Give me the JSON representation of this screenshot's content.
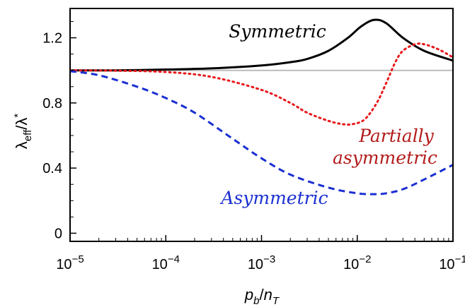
{
  "chart_data": {
    "type": "line",
    "xscale": "log",
    "xlim": [
      1e-05,
      0.1
    ],
    "ylim": [
      -0.05,
      1.38
    ],
    "xlabel": {
      "base": "p",
      "sub": "b",
      "sep": "/",
      "base2": "n",
      "sub2": "T"
    },
    "ylabel": {
      "base": "λ",
      "sub": "eff",
      "sep": "/λ",
      "sup": "*"
    },
    "xticks": [
      {
        "value": 1e-05,
        "base": "10",
        "exp": "−5"
      },
      {
        "value": 0.0001,
        "base": "10",
        "exp": "−4"
      },
      {
        "value": 0.001,
        "base": "10",
        "exp": "−3"
      },
      {
        "value": 0.01,
        "base": "10",
        "exp": "−2"
      },
      {
        "value": 0.1,
        "base": "10",
        "exp": "−1"
      }
    ],
    "yticks": [
      {
        "value": 0,
        "label": "0"
      },
      {
        "value": 0.4,
        "label": "0.4"
      },
      {
        "value": 0.8,
        "label": "0.8"
      },
      {
        "value": 1.2,
        "label": "1.2"
      }
    ],
    "reference_line": {
      "y": 1.0,
      "color": "#bbbbbb"
    },
    "series": [
      {
        "name": "Symmetric",
        "color": "#000000",
        "style": "solid",
        "x": [
          1e-05,
          3e-05,
          0.0001,
          0.0003,
          0.001,
          0.002,
          0.003,
          0.005,
          0.008,
          0.011,
          0.015,
          0.02,
          0.03,
          0.05,
          0.1
        ],
        "y": [
          1.0,
          1.0,
          1.005,
          1.012,
          1.03,
          1.05,
          1.07,
          1.12,
          1.2,
          1.27,
          1.31,
          1.29,
          1.2,
          1.12,
          1.06
        ]
      },
      {
        "name": "Partially asymmetric",
        "label_lines": [
          "Partially",
          "asymmetric"
        ],
        "color": "#e8181c",
        "style": "dotted",
        "x": [
          1e-05,
          3e-05,
          0.0001,
          0.0003,
          0.001,
          0.002,
          0.003,
          0.005,
          0.007,
          0.009,
          0.012,
          0.016,
          0.02,
          0.025,
          0.03,
          0.04,
          0.05,
          0.07,
          0.1
        ],
        "y": [
          1.0,
          0.998,
          0.99,
          0.96,
          0.88,
          0.8,
          0.74,
          0.69,
          0.67,
          0.67,
          0.7,
          0.8,
          0.92,
          1.05,
          1.12,
          1.16,
          1.16,
          1.13,
          1.08
        ]
      },
      {
        "name": "Asymmetric",
        "color": "#1a2fd1",
        "style": "dashed",
        "x": [
          1e-05,
          2e-05,
          5e-05,
          0.0001,
          0.0002,
          0.0005,
          0.001,
          0.002,
          0.005,
          0.01,
          0.015,
          0.02,
          0.03,
          0.05,
          0.1
        ],
        "y": [
          0.995,
          0.97,
          0.9,
          0.83,
          0.74,
          0.58,
          0.46,
          0.36,
          0.28,
          0.245,
          0.24,
          0.245,
          0.27,
          0.33,
          0.42
        ]
      }
    ]
  }
}
